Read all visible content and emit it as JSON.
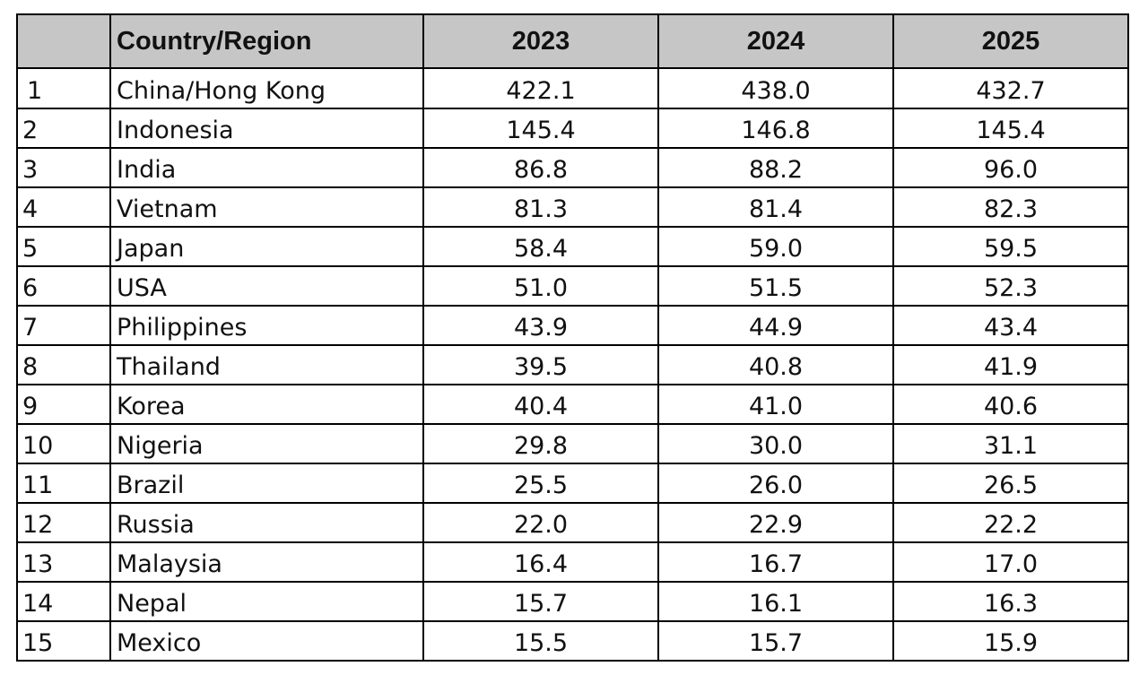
{
  "table": {
    "headers": {
      "rank": "",
      "country": "Country/Region",
      "years": [
        "2023",
        "2024",
        "2025"
      ]
    },
    "rows": [
      {
        "rank": "1",
        "country": "China/Hong Kong",
        "values": [
          "422.1",
          "438.0",
          "432.7"
        ]
      },
      {
        "rank": "2",
        "country": "Indonesia",
        "values": [
          "145.4",
          "146.8",
          "145.4"
        ]
      },
      {
        "rank": "3",
        "country": "India",
        "values": [
          "86.8",
          "88.2",
          "96.0"
        ]
      },
      {
        "rank": "4",
        "country": "Vietnam",
        "values": [
          "81.3",
          "81.4",
          "82.3"
        ]
      },
      {
        "rank": "5",
        "country": "Japan",
        "values": [
          "58.4",
          "59.0",
          "59.5"
        ]
      },
      {
        "rank": "6",
        "country": "USA",
        "values": [
          "51.0",
          "51.5",
          "52.3"
        ]
      },
      {
        "rank": "7",
        "country": "Philippines",
        "values": [
          "43.9",
          "44.9",
          "43.4"
        ]
      },
      {
        "rank": "8",
        "country": "Thailand",
        "values": [
          "39.5",
          "40.8",
          "41.9"
        ]
      },
      {
        "rank": "9",
        "country": "Korea",
        "values": [
          "40.4",
          "41.0",
          "40.6"
        ]
      },
      {
        "rank": "10",
        "country": "Nigeria",
        "values": [
          "29.8",
          "30.0",
          "31.1"
        ]
      },
      {
        "rank": "11",
        "country": "Brazil",
        "values": [
          "25.5",
          "26.0",
          "26.5"
        ]
      },
      {
        "rank": "12",
        "country": "Russia",
        "values": [
          "22.0",
          "22.9",
          "22.2"
        ]
      },
      {
        "rank": "13",
        "country": "Malaysia",
        "values": [
          "16.4",
          "16.7",
          "17.0"
        ]
      },
      {
        "rank": "14",
        "country": "Nepal",
        "values": [
          "15.7",
          "16.1",
          "16.3"
        ]
      },
      {
        "rank": "15",
        "country": "Mexico",
        "values": [
          "15.5",
          "15.7",
          "15.9"
        ]
      }
    ]
  },
  "colors": {
    "header_background": "#c6c6c6",
    "border": "#000000",
    "text": "#111111"
  }
}
